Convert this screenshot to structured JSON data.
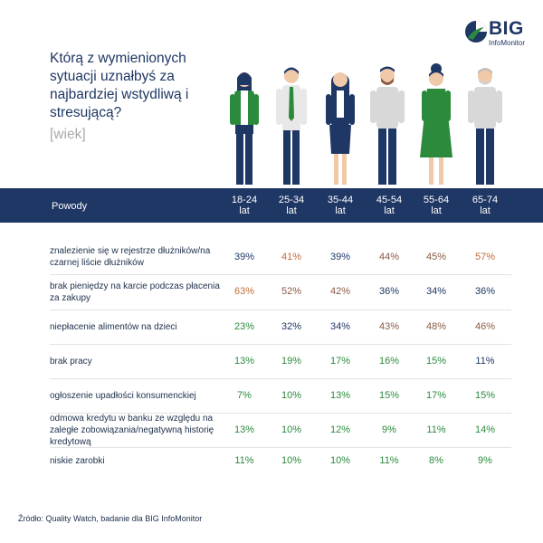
{
  "title": "Którą z wymienionych sytuacji uznałbyś za najbardziej wstydliwą i stresującą?",
  "subtitle": "[wiek]",
  "logo": {
    "brand": "BIG",
    "sub": "InfoMonitor"
  },
  "header_label": "Powody",
  "colors": {
    "header": "#1f3764",
    "low": "#1f3764",
    "mid": "#2c8a3d",
    "high": "#c26b3a",
    "mid_brown": "#8a5a45"
  },
  "chart_data": {
    "type": "table",
    "title": "Którą z wymienionych sytuacji uznałbyś za najbardziej wstydliwą i stresującą?",
    "subtitle": "[wiek]",
    "columns": [
      "18-24 lat",
      "25-34 lat",
      "35-44 lat",
      "45-54 lat",
      "55-64 lat",
      "65-74 lat"
    ],
    "rows": [
      {
        "label": "znalezienie się w rejestrze dłużników/na czarnej liście dłużników",
        "values": [
          "39%",
          "41%",
          "39%",
          "44%",
          "45%",
          "57%"
        ],
        "colors": [
          "low",
          "high",
          "low",
          "brown",
          "brown",
          "high"
        ]
      },
      {
        "label": "brak pieniędzy na karcie podczas płacenia za zakupy",
        "values": [
          "63%",
          "52%",
          "42%",
          "36%",
          "34%",
          "36%"
        ],
        "colors": [
          "high",
          "brown",
          "brown",
          "low",
          "low",
          "low"
        ]
      },
      {
        "label": "niepłacenie alimentów na dzieci",
        "values": [
          "23%",
          "32%",
          "34%",
          "43%",
          "48%",
          "46%"
        ],
        "colors": [
          "mid",
          "low",
          "low",
          "brown",
          "brown",
          "brown"
        ]
      },
      {
        "label": "brak pracy",
        "values": [
          "13%",
          "19%",
          "17%",
          "16%",
          "15%",
          "11%"
        ],
        "colors": [
          "mid",
          "mid",
          "mid",
          "mid",
          "mid",
          "low"
        ]
      },
      {
        "label": "ogłoszenie upadłości konsumenckiej",
        "values": [
          "7%",
          "10%",
          "13%",
          "15%",
          "17%",
          "15%"
        ],
        "colors": [
          "mid",
          "mid",
          "mid",
          "mid",
          "mid",
          "mid"
        ]
      },
      {
        "label": "odmowa kredytu w banku ze względu na zaległe zobowiązania/negatywną historię kredytową",
        "values": [
          "13%",
          "10%",
          "12%",
          "9%",
          "11%",
          "14%"
        ],
        "colors": [
          "mid",
          "mid",
          "mid",
          "mid",
          "mid",
          "mid"
        ]
      },
      {
        "label": "niskie zarobki",
        "values": [
          "11%",
          "10%",
          "10%",
          "11%",
          "8%",
          "9%"
        ],
        "colors": [
          "mid",
          "mid",
          "mid",
          "mid",
          "mid",
          "mid"
        ]
      }
    ]
  },
  "source": "Źródło: Quality Watch, badanie dla BIG InfoMonitor"
}
